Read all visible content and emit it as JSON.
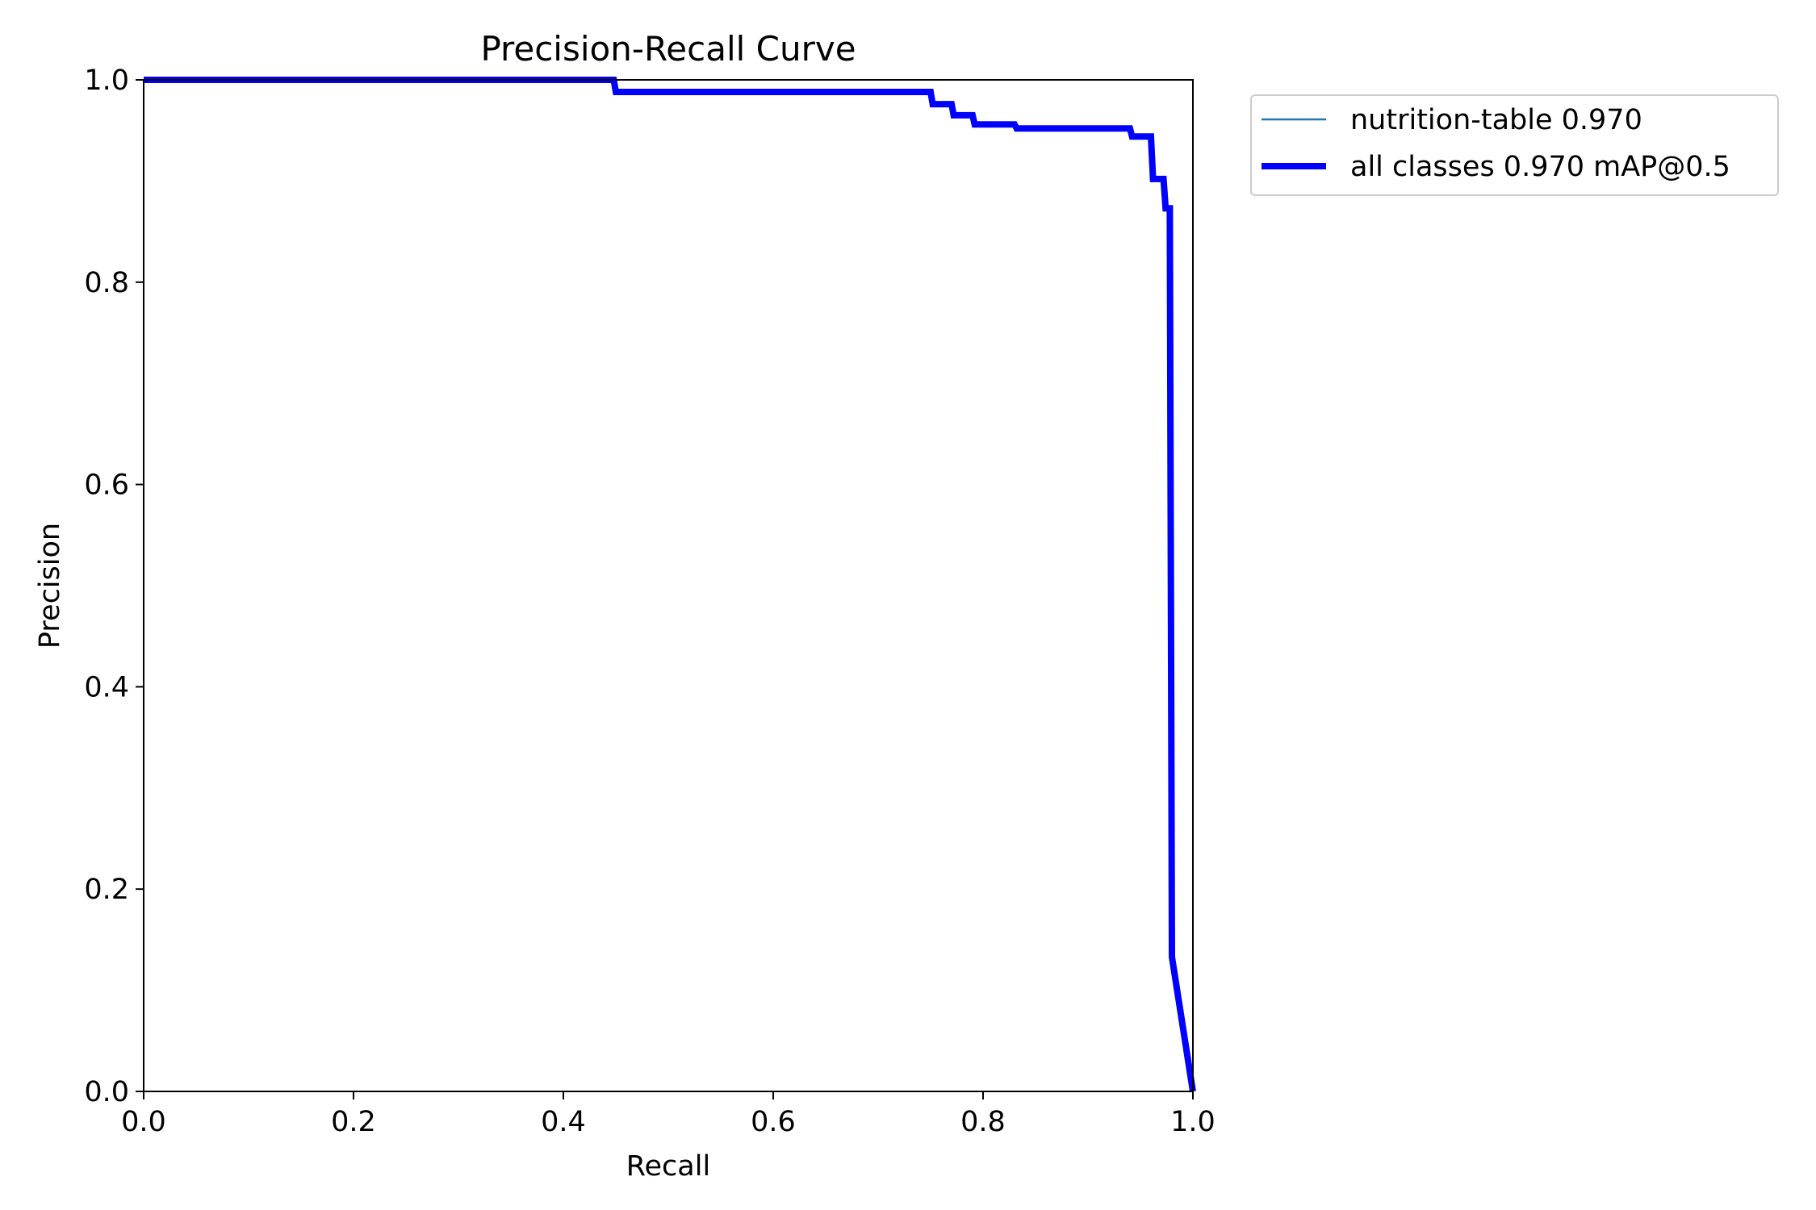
{
  "chart_data": {
    "type": "line",
    "title": "Precision-Recall Curve",
    "xlabel": "Recall",
    "ylabel": "Precision",
    "xlim": [
      0.0,
      1.0
    ],
    "ylim": [
      0.0,
      1.0
    ],
    "xticks": [
      "0.0",
      "0.2",
      "0.4",
      "0.6",
      "0.8",
      "1.0"
    ],
    "yticks": [
      "0.0",
      "0.2",
      "0.4",
      "0.6",
      "0.8",
      "1.0"
    ],
    "grid": false,
    "legend_position": "outside-top-right",
    "series": [
      {
        "name": "nutrition-table 0.970",
        "color": "#1f77b4",
        "style": "thin",
        "x": [
          0.0,
          0.448,
          0.45,
          0.75,
          0.752,
          0.77,
          0.772,
          0.79,
          0.792,
          0.83,
          0.832,
          0.94,
          0.942,
          0.96,
          0.962,
          0.972,
          0.974,
          0.978,
          0.98,
          1.0
        ],
        "y": [
          1.0,
          1.0,
          0.988,
          0.988,
          0.976,
          0.976,
          0.965,
          0.965,
          0.956,
          0.956,
          0.952,
          0.952,
          0.944,
          0.944,
          0.902,
          0.902,
          0.873,
          0.873,
          0.133,
          0.0
        ]
      },
      {
        "name": "all classes 0.970 mAP@0.5",
        "color": "#0000ff",
        "style": "thick",
        "x": [
          0.0,
          0.448,
          0.45,
          0.75,
          0.752,
          0.77,
          0.772,
          0.79,
          0.792,
          0.83,
          0.832,
          0.94,
          0.942,
          0.96,
          0.962,
          0.972,
          0.974,
          0.978,
          0.98,
          1.0
        ],
        "y": [
          1.0,
          1.0,
          0.988,
          0.988,
          0.976,
          0.976,
          0.965,
          0.965,
          0.956,
          0.956,
          0.952,
          0.952,
          0.944,
          0.944,
          0.902,
          0.902,
          0.873,
          0.873,
          0.133,
          0.0
        ]
      }
    ]
  }
}
